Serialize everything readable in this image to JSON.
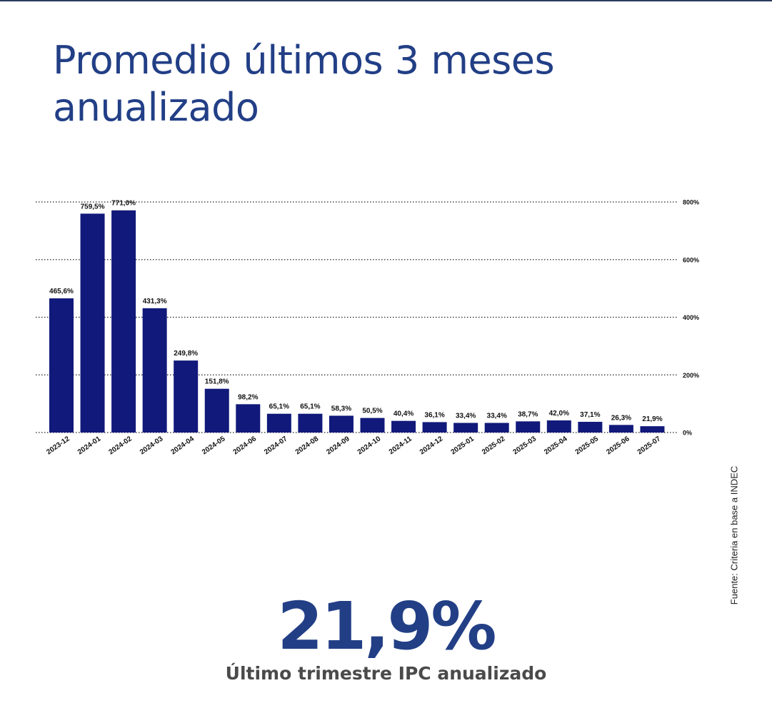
{
  "title": {
    "line1": "Promedio últimos 3 meses",
    "line2": "anualizado"
  },
  "source": "Fuente: Criteria en base a INDEC",
  "highlight": {
    "value": "21,9%",
    "caption": "Último trimestre IPC anualizado"
  },
  "colors": {
    "bar": "#11197a",
    "title": "#223f86",
    "grid": "#222222"
  },
  "chart_data": {
    "type": "bar",
    "title": "Promedio últimos 3 meses anualizado",
    "xlabel": "",
    "ylabel": "",
    "categories": [
      "2023-12",
      "2024-01",
      "2024-02",
      "2024-03",
      "2024-04",
      "2024-05",
      "2024-06",
      "2024-07",
      "2024-08",
      "2024-09",
      "2024-10",
      "2024-11",
      "2024-12",
      "2025-01",
      "2025-02",
      "2025-03",
      "2025-04",
      "2025-05",
      "2025-06",
      "2025-07"
    ],
    "values": [
      465.6,
      759.5,
      771.0,
      431.3,
      249.8,
      151.8,
      98.2,
      65.1,
      65.1,
      58.3,
      50.5,
      40.4,
      36.1,
      33.4,
      33.4,
      38.7,
      42.0,
      37.1,
      26.3,
      21.9
    ],
    "data_labels": [
      "465,6%",
      "759,5%",
      "771,0%",
      "431,3%",
      "249,8%",
      "151,8%",
      "98,2%",
      "65,1%",
      "65,1%",
      "58,3%",
      "50,5%",
      "40,4%",
      "36,1%",
      "33,4%",
      "33,4%",
      "38,7%",
      "42,0%",
      "37,1%",
      "26,3%",
      "21,9%"
    ],
    "ylim": [
      0,
      800
    ],
    "yticks": [
      0,
      200,
      400,
      600,
      800
    ],
    "ytick_labels": [
      "0%",
      "200%",
      "400%",
      "600%",
      "800%"
    ],
    "y_axis_position": "right",
    "grid": true,
    "grid_style": "dotted",
    "legend": "none"
  }
}
